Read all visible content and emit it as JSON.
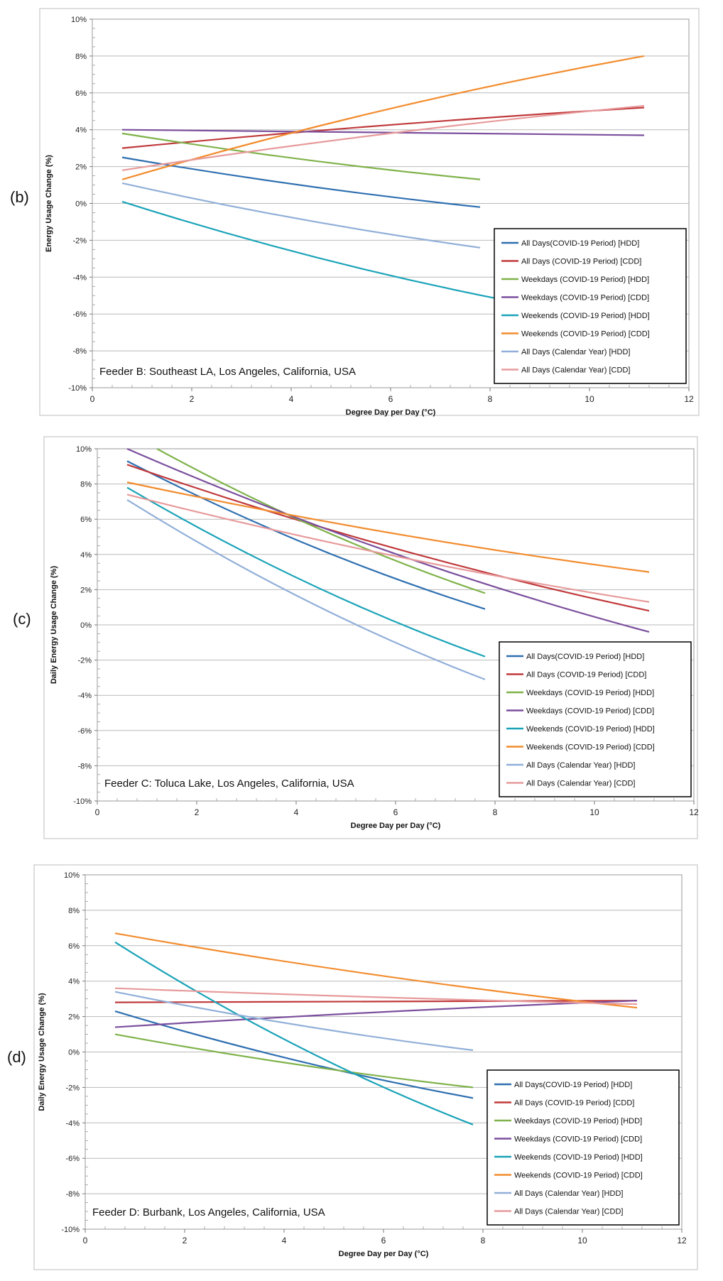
{
  "panels": [
    {
      "label": "(b)",
      "location": "Feeder B: Southeast LA, Los Angeles, California, USA",
      "chart_data": {
        "type": "line",
        "xlabel": "Degree Day per Day (°C)",
        "ylabel": "Energy Usage Change (%)",
        "xlim": [
          0,
          12
        ],
        "ylim": [
          -10,
          10
        ],
        "xticks": [
          "0",
          "2",
          "4",
          "6",
          "8",
          "10",
          "12"
        ],
        "yticks": [
          "10%",
          "8%",
          "6%",
          "4%",
          "2%",
          "0%",
          "-2%",
          "-4%",
          "-6%",
          "-8%",
          "-10%"
        ],
        "grid": "horizontal",
        "legend_position": "bottom-right",
        "series": [
          {
            "name": "All Days(COVID-19 Period) [HDD]",
            "color": "#2e6fb0",
            "x": [
              0.6,
              7.8
            ],
            "y": [
              2.5,
              -0.2
            ]
          },
          {
            "name": "All Days (COVID-19 Period) [CDD]",
            "color": "#c0393b",
            "x": [
              0.6,
              11.1
            ],
            "y": [
              3.0,
              5.2
            ]
          },
          {
            "name": "Weekdays (COVID-19 Period) [HDD]",
            "color": "#7fb24a",
            "x": [
              0.6,
              7.8
            ],
            "y": [
              3.8,
              1.3
            ]
          },
          {
            "name": "Weekdays (COVID-19 Period) [CDD]",
            "color": "#7b4f9d",
            "x": [
              0.6,
              11.1
            ],
            "y": [
              4.0,
              3.7
            ]
          },
          {
            "name": "Weekends (COVID-19 Period) [HDD]",
            "color": "#1aa3b8",
            "x": [
              0.6,
              8.4
            ],
            "y": [
              0.1,
              -5.3
            ]
          },
          {
            "name": "Weekends (COVID-19 Period) [CDD]",
            "color": "#f28c2e",
            "x": [
              0.6,
              11.1
            ],
            "y": [
              1.3,
              8.0
            ]
          },
          {
            "name": "All Days (Calendar Year) [HDD]",
            "color": "#91afd8",
            "x": [
              0.6,
              7.8
            ],
            "y": [
              1.1,
              -2.4
            ]
          },
          {
            "name": "All Days (Calendar Year) [CDD]",
            "color": "#e79a9b",
            "x": [
              0.6,
              11.1
            ],
            "y": [
              1.8,
              5.3
            ]
          }
        ]
      }
    },
    {
      "label": "(c)",
      "location": "Feeder C: Toluca Lake, Los Angeles, California, USA",
      "chart_data": {
        "type": "line",
        "xlabel": "Degree Day per Day (°C)",
        "ylabel": "Daily Energy Usage Change (%)",
        "xlim": [
          0,
          12
        ],
        "ylim": [
          -10,
          10
        ],
        "xticks": [
          "0",
          "2",
          "4",
          "6",
          "8",
          "10",
          "12"
        ],
        "yticks": [
          "10%",
          "8%",
          "6%",
          "4%",
          "2%",
          "0%",
          "-2%",
          "-4%",
          "-6%",
          "-8%",
          "-10%"
        ],
        "grid": "horizontal",
        "legend_position": "bottom-right",
        "series": [
          {
            "name": "All Days(COVID-19 Period) [HDD]",
            "color": "#2e6fb0",
            "x": [
              0.6,
              7.8
            ],
            "y": [
              9.3,
              0.9
            ]
          },
          {
            "name": "All Days (COVID-19 Period) [CDD]",
            "color": "#c0393b",
            "x": [
              0.6,
              11.1
            ],
            "y": [
              9.1,
              0.8
            ]
          },
          {
            "name": "Weekdays (COVID-19 Period) [HDD]",
            "color": "#7fb24a",
            "x": [
              1.2,
              7.8
            ],
            "y": [
              10.0,
              1.8
            ]
          },
          {
            "name": "Weekdays (COVID-19 Period) [CDD]",
            "color": "#7b4f9d",
            "x": [
              0.6,
              11.1
            ],
            "y": [
              10.0,
              -0.4
            ]
          },
          {
            "name": "Weekends (COVID-19 Period) [HDD]",
            "color": "#1aa3b8",
            "x": [
              0.6,
              7.8
            ],
            "y": [
              7.8,
              -1.8
            ]
          },
          {
            "name": "Weekends (COVID-19 Period) [CDD]",
            "color": "#f28c2e",
            "x": [
              0.6,
              11.1
            ],
            "y": [
              8.1,
              3.0
            ]
          },
          {
            "name": "All Days (Calendar Year) [HDD]",
            "color": "#91afd8",
            "x": [
              0.6,
              7.8
            ],
            "y": [
              7.1,
              -3.1
            ]
          },
          {
            "name": "All Days (Calendar Year) [CDD]",
            "color": "#e79a9b",
            "x": [
              0.6,
              11.1
            ],
            "y": [
              7.4,
              1.3
            ]
          }
        ]
      }
    },
    {
      "label": "(d)",
      "location": "Feeder D: Burbank, Los Angeles, California, USA",
      "chart_data": {
        "type": "line",
        "xlabel": "Degree Day per Day (°C)",
        "ylabel": "Daily Energy Usage Change (%)",
        "xlim": [
          0,
          12
        ],
        "ylim": [
          -10,
          10
        ],
        "xticks": [
          "0",
          "2",
          "4",
          "6",
          "8",
          "10",
          "12"
        ],
        "yticks": [
          "10%",
          "8%",
          "6%",
          "4%",
          "2%",
          "0%",
          "-2%",
          "-4%",
          "-6%",
          "-8%",
          "-10%"
        ],
        "grid": "horizontal",
        "legend_position": "bottom-right",
        "series": [
          {
            "name": "All Days(COVID-19 Period) [HDD]",
            "color": "#2e6fb0",
            "x": [
              0.6,
              7.8
            ],
            "y": [
              2.3,
              -2.6
            ]
          },
          {
            "name": "All Days (COVID-19 Period) [CDD]",
            "color": "#c0393b",
            "x": [
              0.6,
              11.1
            ],
            "y": [
              2.8,
              2.9
            ]
          },
          {
            "name": "Weekdays (COVID-19 Period) [HDD]",
            "color": "#7fb24a",
            "x": [
              0.6,
              7.8
            ],
            "y": [
              1.0,
              -2.0
            ]
          },
          {
            "name": "Weekdays (COVID-19 Period) [CDD]",
            "color": "#7b4f9d",
            "x": [
              0.6,
              11.1
            ],
            "y": [
              1.4,
              2.9
            ]
          },
          {
            "name": "Weekends (COVID-19 Period) [HDD]",
            "color": "#1aa3b8",
            "x": [
              0.6,
              7.8
            ],
            "y": [
              6.2,
              -4.1
            ]
          },
          {
            "name": "Weekends (COVID-19 Period) [CDD]",
            "color": "#f28c2e",
            "x": [
              0.6,
              11.1
            ],
            "y": [
              6.7,
              2.5
            ]
          },
          {
            "name": "All Days (Calendar Year) [HDD]",
            "color": "#91afd8",
            "x": [
              0.6,
              7.8
            ],
            "y": [
              3.4,
              0.1
            ]
          },
          {
            "name": "All Days (Calendar Year) [CDD]",
            "color": "#e79a9b",
            "x": [
              0.6,
              11.1
            ],
            "y": [
              3.6,
              2.7
            ]
          }
        ]
      }
    }
  ]
}
